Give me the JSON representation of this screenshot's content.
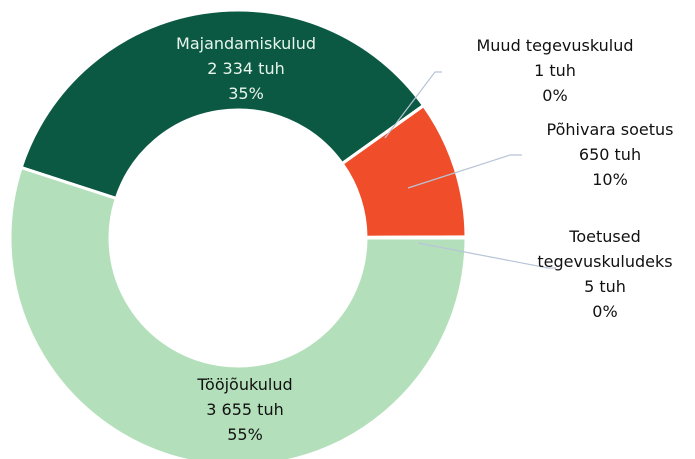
{
  "chart_data": {
    "type": "donut",
    "categories": [
      "Majandamiskulud",
      "Muud tegevuskulud",
      "Põhivara soetus",
      "Toetused tegevuskuludeks",
      "Tööjõukulud"
    ],
    "values": [
      2334,
      1,
      650,
      5,
      3655
    ],
    "value_labels": [
      "2 334 tuh",
      "1 tuh",
      "650 tuh",
      "5 tuh",
      "3 655 tuh"
    ],
    "percent_values": [
      35,
      0,
      10,
      0,
      55
    ],
    "percent_labels": [
      "35%",
      "0%",
      "10%",
      "0%",
      "55%"
    ],
    "colors": [
      "#0b5943",
      "#6b7b74",
      "#f04e2a",
      "#8fa69a",
      "#b3e0bb"
    ]
  }
}
